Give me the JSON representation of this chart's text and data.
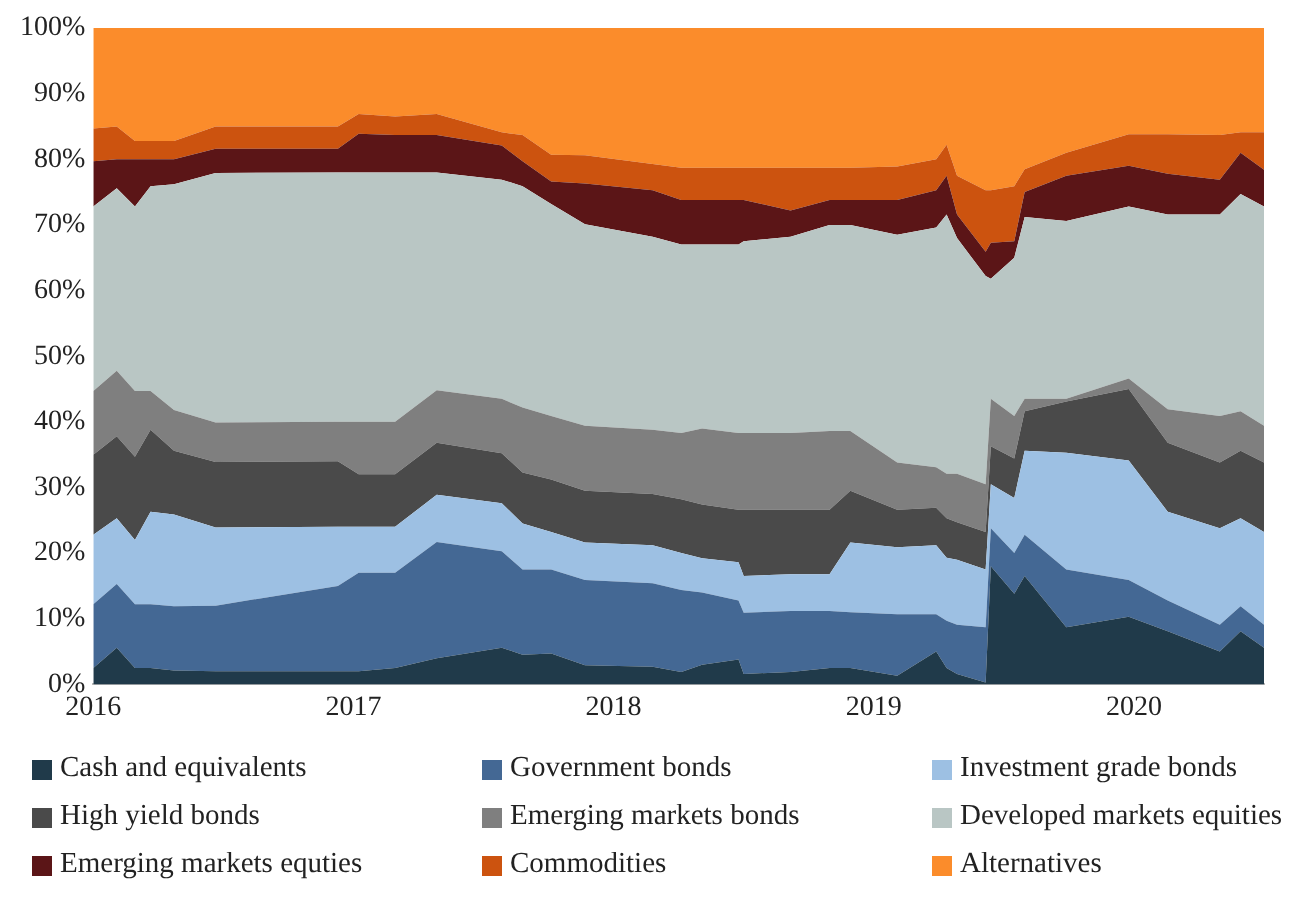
{
  "chart_data": {
    "type": "area",
    "stacked": true,
    "legend": "bottom",
    "grid": false,
    "x": [
      2016.0,
      2016.09,
      2016.16,
      2016.22,
      2016.31,
      2016.47,
      2016.94,
      2017.02,
      2017.16,
      2017.32,
      2017.57,
      2017.65,
      2017.76,
      2017.89,
      2018.15,
      2018.26,
      2018.34,
      2018.48,
      2018.5,
      2018.68,
      2018.83,
      2018.91,
      2019.09,
      2019.24,
      2019.28,
      2019.32,
      2019.43,
      2019.45,
      2019.54,
      2019.58,
      2019.74,
      2019.98,
      2020.13,
      2020.33,
      2020.41,
      2020.5
    ],
    "xlim": [
      2016,
      2020.5
    ],
    "xticks": [
      2016,
      2017,
      2018,
      2019,
      2020
    ],
    "ylim": [
      0,
      100
    ],
    "yticks": [
      {
        "value": 0,
        "label": "0%"
      },
      {
        "value": 10,
        "label": "10%"
      },
      {
        "value": 20,
        "label": "20%"
      },
      {
        "value": 30,
        "label": "30%"
      },
      {
        "value": 40,
        "label": "40%"
      },
      {
        "value": 50,
        "label": "50%"
      },
      {
        "value": 60,
        "label": "60%"
      },
      {
        "value": 70,
        "label": "70%"
      },
      {
        "value": 80,
        "label": "80%"
      },
      {
        "value": 90,
        "label": "90%"
      },
      {
        "value": 100,
        "label": "100%"
      }
    ],
    "series": [
      {
        "name": "Cash and equivalents",
        "color": "#203a4a",
        "values": [
          2.5,
          5.6,
          2.5,
          2.5,
          2.1,
          2,
          2,
          2,
          2.5,
          4,
          5.6,
          4.5,
          4.7,
          2.9,
          2.7,
          1.9,
          3,
          3.8,
          1.6,
          1.9,
          2.5,
          2.5,
          1.3,
          5,
          2.5,
          1.6,
          0.3,
          18,
          13.8,
          16.5,
          8.7,
          10.3,
          8.1,
          5,
          8.1,
          5.6
        ]
      },
      {
        "name": "Government bonds",
        "color": "#446894",
        "values": [
          9.7,
          9.7,
          9.7,
          9.7,
          9.8,
          10,
          13,
          15,
          14.5,
          17.7,
          14.7,
          13,
          12.8,
          13,
          12.7,
          12.5,
          11,
          9,
          9.3,
          9.3,
          8.7,
          8.5,
          9.4,
          5.7,
          7.2,
          7.5,
          8.4,
          5.8,
          6.2,
          6.3,
          8.8,
          5.6,
          4.7,
          4.1,
          3.8,
          3.5
        ]
      },
      {
        "name": "Investment grade bonds",
        "color": "#9dc0e3",
        "values": [
          10.6,
          10,
          9.8,
          14.1,
          14,
          11.9,
          9,
          7,
          7,
          7.2,
          7.3,
          7,
          5.7,
          5.7,
          5.8,
          5.6,
          5.2,
          5.8,
          5.6,
          5.6,
          5.6,
          10.6,
          10.2,
          10.5,
          9.6,
          9.9,
          8.8,
          6.7,
          8.4,
          12.8,
          17.8,
          18.2,
          13.5,
          14.7,
          13.4,
          14.1
        ]
      },
      {
        "name": "High yield bonds",
        "color": "#4a4a4a",
        "values": [
          12.2,
          12.5,
          12.7,
          12.5,
          9.7,
          10,
          10,
          8,
          8,
          7.9,
          7.6,
          7.8,
          8,
          7.9,
          7.8,
          8.2,
          8.2,
          8,
          10.1,
          9.8,
          9.8,
          7.9,
          5.7,
          5.7,
          6,
          5.7,
          5.7,
          5.8,
          6,
          6,
          7.8,
          10.9,
          10.5,
          10,
          10.3,
          10.6
        ]
      },
      {
        "name": "Emerging markets bonds",
        "color": "#7f7f7f",
        "values": [
          9.7,
          10,
          10,
          5.9,
          6.2,
          6,
          6,
          8,
          8,
          8,
          8.3,
          9.9,
          9.7,
          9.9,
          9.8,
          10.1,
          11.6,
          11.7,
          11.7,
          11.7,
          12,
          9.1,
          7.2,
          6.2,
          6.8,
          7.4,
          7.3,
          7.2,
          6.5,
          1.9,
          0.4,
          1.6,
          5.1,
          7.1,
          6,
          5.6
        ]
      },
      {
        "name": "Developed markets equities",
        "color": "#b9c6c4",
        "values": [
          28.1,
          27.8,
          28.1,
          31.2,
          34.4,
          38,
          38,
          38,
          38,
          33.2,
          33.4,
          33.7,
          32.3,
          30.7,
          29.4,
          28.7,
          28,
          28.7,
          29.2,
          29.9,
          31.4,
          31.4,
          34.7,
          36.5,
          39.5,
          35.9,
          31.7,
          18.3,
          24.1,
          27.7,
          27.1,
          26.2,
          29.7,
          30.7,
          33.1,
          33.4
        ]
      },
      {
        "name": "Emerging markets equties",
        "color": "#5b1517",
        "values": [
          6.9,
          4.4,
          7.2,
          4.1,
          3.8,
          3.7,
          3.6,
          5.9,
          5.7,
          5.7,
          5.2,
          3.8,
          3.4,
          6.2,
          7.1,
          6.8,
          6.8,
          6.8,
          6.3,
          4,
          3.8,
          3.8,
          5.3,
          5.7,
          5.9,
          3.6,
          3.7,
          5.5,
          2.5,
          3.8,
          6.9,
          6.2,
          6.2,
          5.3,
          6.3,
          5.6
        ]
      },
      {
        "name": "Commodities",
        "color": "#cc530f",
        "values": [
          5,
          5,
          2.8,
          2.8,
          2.8,
          3.4,
          3.4,
          3,
          2.8,
          3.2,
          2,
          4,
          4.1,
          4.3,
          4,
          4.9,
          4.9,
          4.9,
          4.9,
          6.5,
          4.9,
          4.9,
          5.1,
          4.7,
          4.7,
          5.9,
          9.4,
          8,
          8.4,
          3.5,
          3.5,
          4.8,
          6,
          6.8,
          3.1,
          5.7
        ]
      },
      {
        "name": "Alternatives",
        "color": "#fb8c2b",
        "values": [
          15.3,
          15,
          17.2,
          17.2,
          17.2,
          15,
          15,
          13.1,
          13.5,
          13.1,
          15.9,
          16.3,
          19.3,
          19.4,
          20.7,
          21.3,
          21.3,
          21.3,
          21.3,
          21.3,
          21.3,
          21.3,
          21.1,
          20,
          17.8,
          22.5,
          24.7,
          24.7,
          24.1,
          21.5,
          19,
          16.2,
          16.2,
          16.3,
          15.9,
          15.9
        ]
      }
    ]
  }
}
